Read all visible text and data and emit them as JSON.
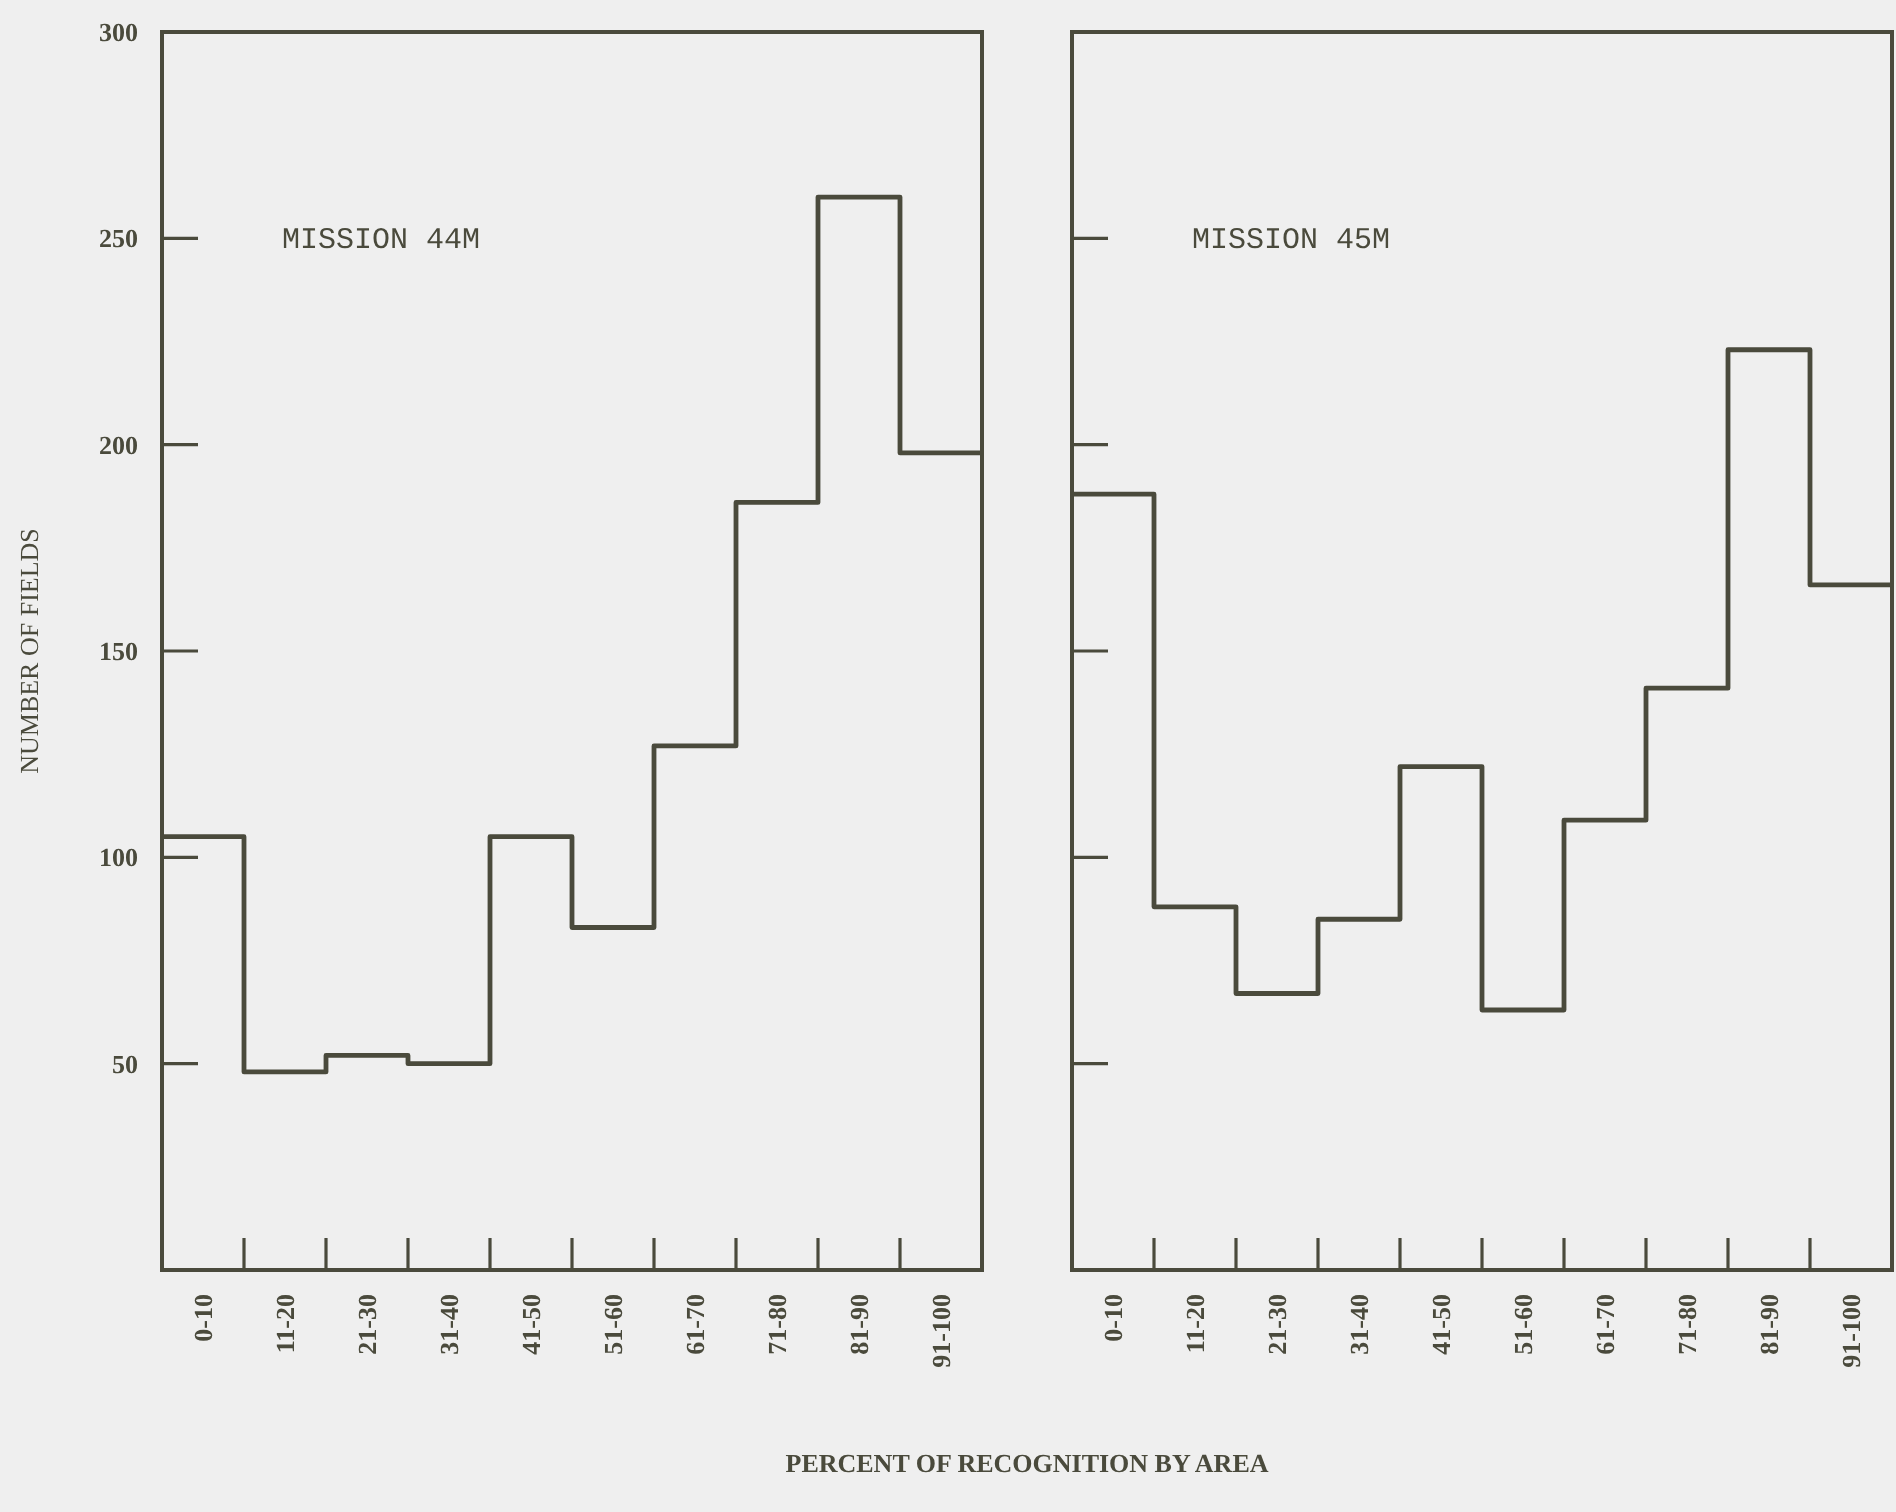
{
  "chart_data": [
    {
      "type": "step",
      "ylabel": "NUMBER OF FIELDS",
      "xlabel": "PERCENT OF RECOGNITION BY AREA",
      "annotations": [
        "MISSION 44M"
      ],
      "categories": [
        "0-10",
        "11-20",
        "21-30",
        "31-40",
        "41-50",
        "51-60",
        "61-70",
        "71-80",
        "81-90",
        "91-100"
      ],
      "color": "#4a4a3c",
      "values": [
        105,
        48,
        52,
        50,
        105,
        83,
        127,
        186,
        260,
        198
      ],
      "ylim": [
        0,
        300
      ],
      "yticks": [
        50,
        100,
        150,
        200,
        250,
        300
      ],
      "grid": false
    },
    {
      "type": "step",
      "annotations": [
        "MISSION 45M"
      ],
      "categories": [
        "0-10",
        "11-20",
        "21-30",
        "31-40",
        "41-50",
        "51-60",
        "61-70",
        "71-80",
        "81-90",
        "91-100"
      ],
      "color": "#4a4a3c",
      "values": [
        188,
        88,
        67,
        85,
        122,
        63,
        109,
        141,
        223,
        166
      ],
      "ylim": [
        0,
        300
      ],
      "yticks": [
        {
          "value": 50,
          "label": null
        },
        {
          "value": 100,
          "label": null
        },
        {
          "value": 150,
          "label": null
        },
        {
          "value": 200,
          "label": null
        },
        {
          "value": 250,
          "label": null
        },
        {
          "value": 300,
          "label": null
        }
      ],
      "tick_labels": "x",
      "grid": false
    }
  ]
}
